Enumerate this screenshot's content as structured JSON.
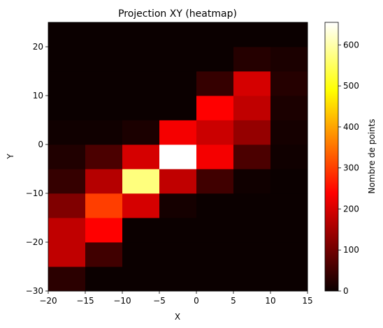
{
  "chart_data": {
    "type": "heatmap",
    "title": "Projection XY (heatmap)",
    "xlabel": "X",
    "ylabel": "Y",
    "xlim": [
      -20,
      15
    ],
    "ylim": [
      -30,
      25
    ],
    "x_edges": [
      -20,
      -15,
      -10,
      -5,
      0,
      5,
      10,
      15
    ],
    "y_edges": [
      -30,
      -25,
      -20,
      -15,
      -10,
      -5,
      0,
      5,
      10,
      15,
      20,
      25
    ],
    "x_ticks": [
      -20,
      -15,
      -10,
      -5,
      0,
      5,
      10,
      15
    ],
    "x_tick_labels": [
      "−20",
      "−15",
      "−10",
      "−5",
      "0",
      "5",
      "10",
      "15"
    ],
    "y_ticks": [
      -30,
      -20,
      -10,
      0,
      10,
      20
    ],
    "y_tick_labels": [
      "−30",
      "−20",
      "−10",
      "0",
      "10",
      "20"
    ],
    "colormap": "hot",
    "colorbar": {
      "label": "Nombre de points",
      "range": [
        0,
        655
      ],
      "ticks": [
        0,
        100,
        200,
        300,
        400,
        500,
        600
      ],
      "tick_labels": [
        "0",
        "100",
        "200",
        "300",
        "400",
        "500",
        "600"
      ]
    },
    "grid": false,
    "values": [
      [
        30,
        0,
        0,
        0,
        0,
        0,
        0
      ],
      [
        170,
        50,
        0,
        0,
        0,
        0,
        0
      ],
      [
        170,
        230,
        0,
        0,
        0,
        0,
        0
      ],
      [
        110,
        300,
        190,
        10,
        0,
        0,
        0
      ],
      [
        40,
        160,
        570,
        170,
        50,
        5,
        0
      ],
      [
        20,
        60,
        190,
        655,
        220,
        60,
        5
      ],
      [
        5,
        5,
        15,
        220,
        180,
        130,
        10
      ],
      [
        0,
        0,
        0,
        0,
        230,
        170,
        15
      ],
      [
        0,
        0,
        0,
        0,
        40,
        190,
        25
      ],
      [
        0,
        0,
        0,
        0,
        0,
        25,
        15
      ],
      [
        0,
        0,
        0,
        0,
        0,
        0,
        0
      ]
    ]
  }
}
